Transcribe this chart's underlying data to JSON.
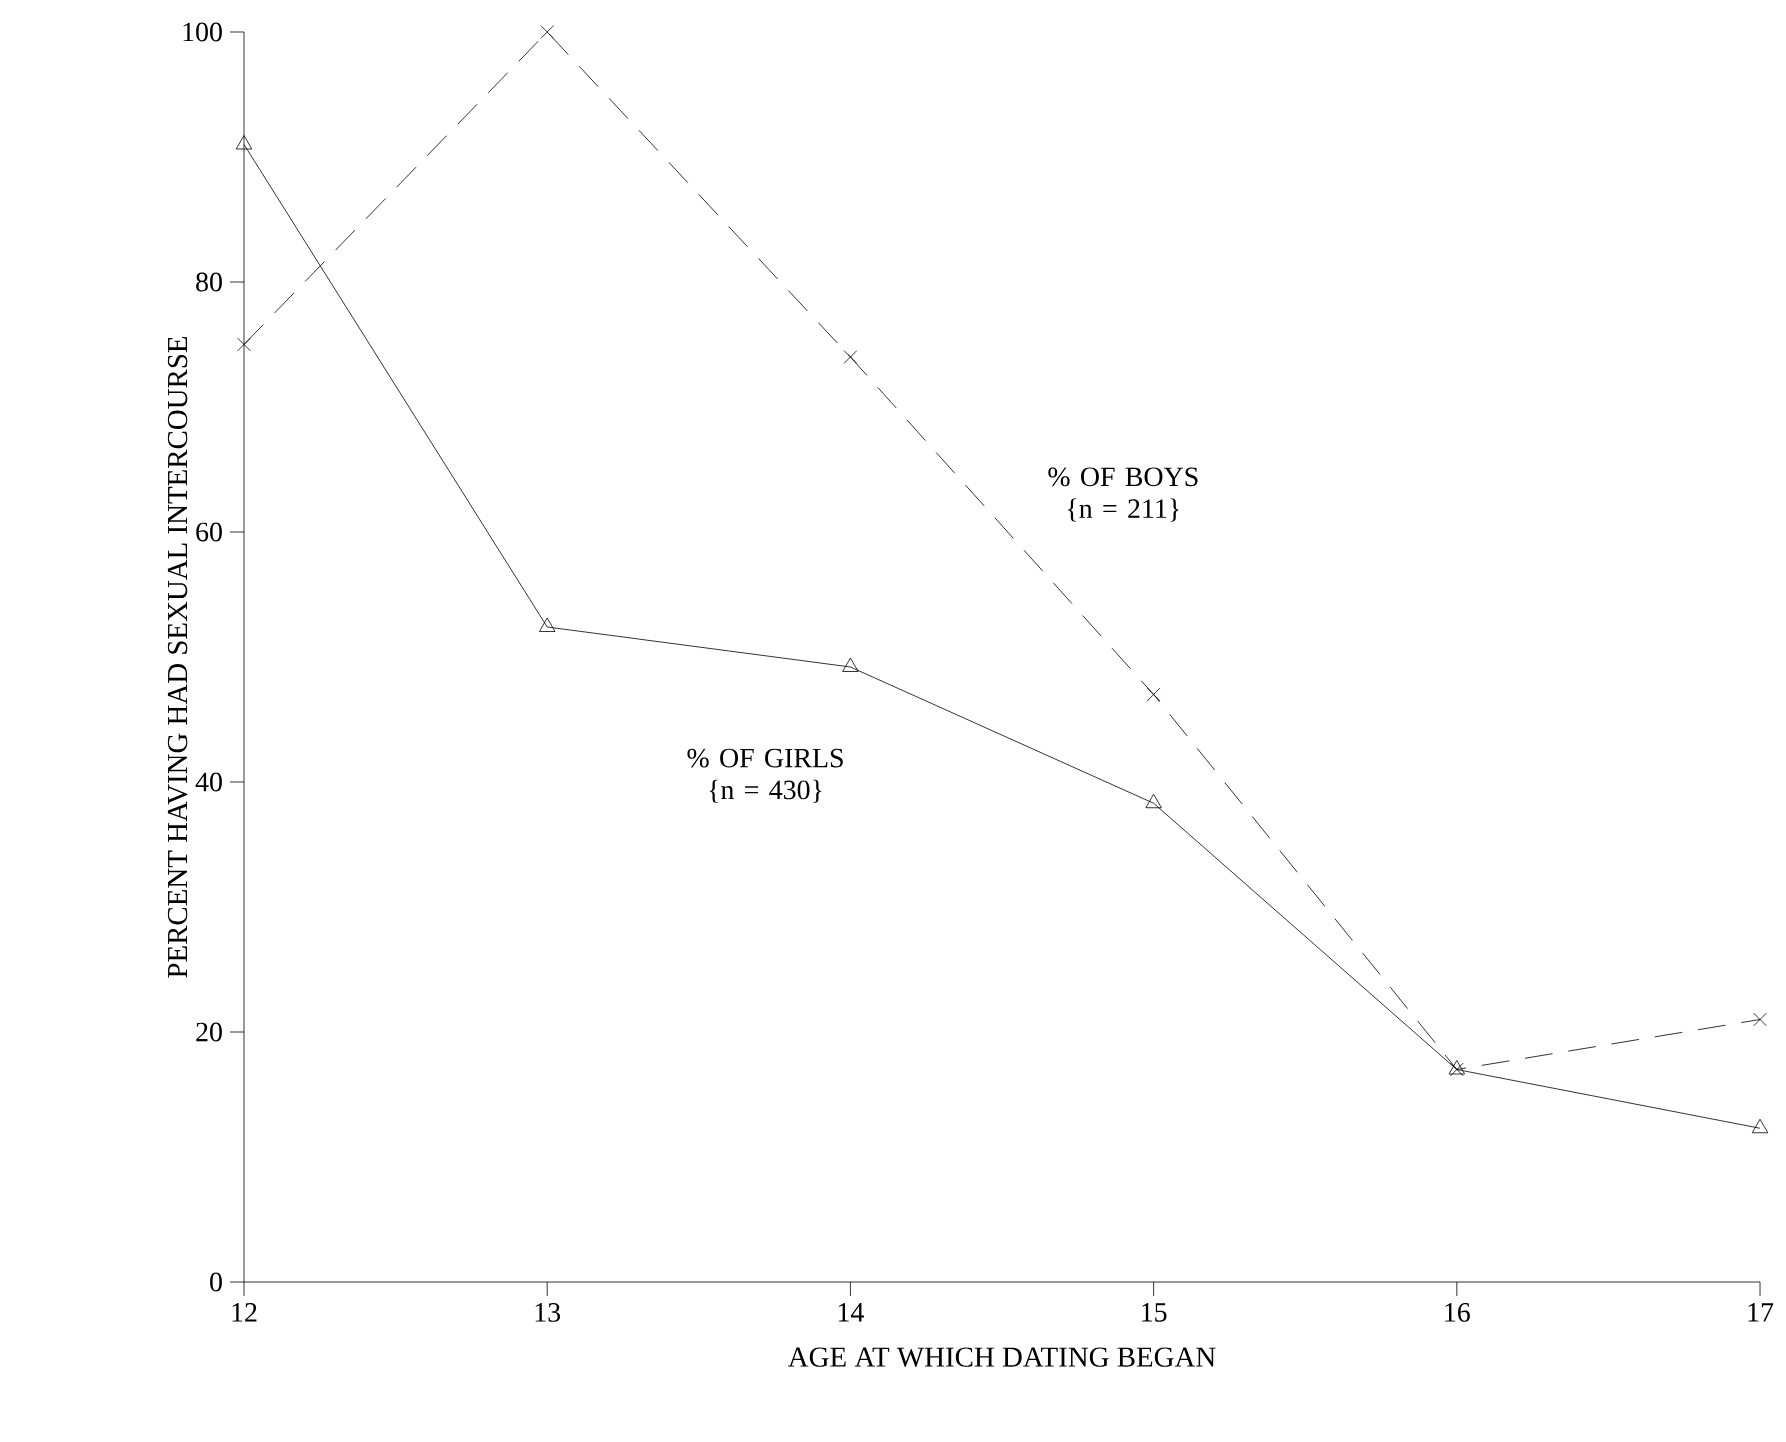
{
  "chart_data": {
    "type": "line",
    "xlabel": "AGE AT WHICH DATING BEGAN",
    "ylabel": "PERCENT HAVING HAD SEXUAL INTERCOURSE",
    "xlim": [
      12,
      17
    ],
    "xticks": [
      12,
      13,
      14,
      15,
      16,
      17
    ],
    "ylim": [
      0,
      100
    ],
    "yticks": [
      0,
      20,
      40,
      60,
      80,
      100
    ],
    "grid": false,
    "legend": false,
    "series": [
      {
        "name": "% OF BOYS {n = 211}",
        "color": "#000000",
        "marker": "cross",
        "line_style": "dashed",
        "x": [
          12,
          13,
          14,
          15,
          16,
          17
        ],
        "values": [
          75,
          100,
          74,
          47,
          17,
          21
        ]
      },
      {
        "name": "% OF GIRLS {n = 430}",
        "color": "#000000",
        "marker": "triangle",
        "line_style": "solid",
        "x": [
          12,
          13,
          14,
          15,
          16,
          17
        ],
        "values": [
          91,
          52.4,
          49.2,
          38.3,
          17,
          12.3
        ]
      }
    ]
  }
}
